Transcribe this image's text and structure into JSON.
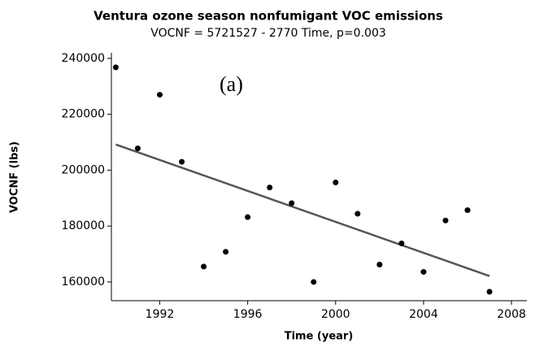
{
  "chart_data": {
    "type": "scatter",
    "title": "Ventura ozone season nonfumigant VOC emissions",
    "subtitle": "VOCNF =  5721527 - 2770 Time, p=0.003",
    "annotation": "(a)",
    "x_label": "Time (year)",
    "y_label": "VOCNF (lbs)",
    "x": [
      1990,
      1991,
      1992,
      1993,
      1994,
      1995,
      1996,
      1997,
      1998,
      1999,
      2000,
      2001,
      2002,
      2003,
      2004,
      2005,
      2006,
      2007
    ],
    "values": [
      236800,
      207800,
      227000,
      203000,
      165500,
      170800,
      183200,
      193800,
      188200,
      160000,
      195600,
      184400,
      166200,
      173800,
      163600,
      182000,
      185700,
      156500
    ],
    "color": "#000000",
    "fit_line": {
      "x": [
        1990,
        2007
      ],
      "values": [
        209200,
        162100
      ],
      "color": "#555555"
    },
    "xlim": [
      1989.8,
      2008.7
    ],
    "xticks": [
      1992,
      1996,
      2000,
      2004,
      2008
    ],
    "ylim": [
      153300,
      242000
    ],
    "yticks": [
      160000,
      180000,
      200000,
      220000,
      240000
    ],
    "grid": false
  }
}
